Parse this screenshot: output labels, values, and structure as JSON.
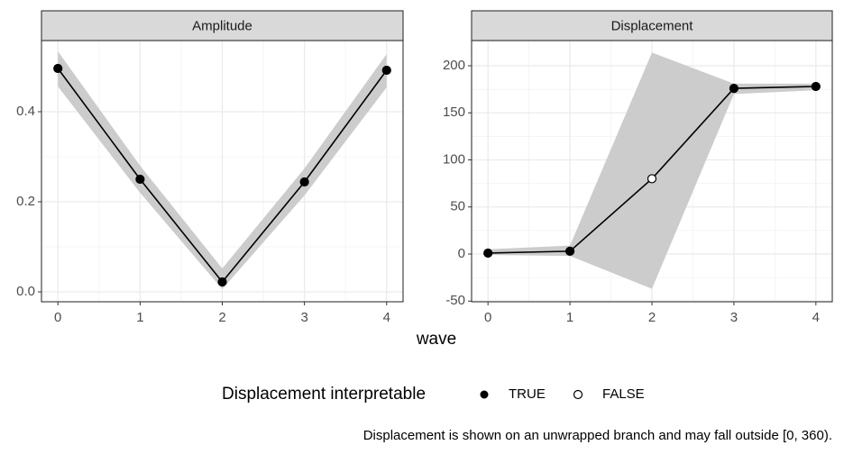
{
  "x_label": "wave",
  "legend": {
    "title": "Displacement interpretable",
    "entries": [
      "TRUE",
      "FALSE"
    ]
  },
  "caption": "Displacement is shown on an unwrapped branch and may fall outside [0, 360).",
  "chart_data": [
    {
      "type": "line",
      "title": "Amplitude",
      "color": "#000000",
      "band_color": "#cccccc",
      "grid": true,
      "x": [
        0,
        1,
        2,
        3,
        4
      ],
      "values": [
        0.496,
        0.25,
        0.022,
        0.244,
        0.492
      ],
      "lower": [
        0.456,
        0.22,
        0.006,
        0.214,
        0.454
      ],
      "upper": [
        0.534,
        0.28,
        0.052,
        0.274,
        0.528
      ],
      "interpretable": [
        true,
        true,
        true,
        true,
        true
      ],
      "xlim": [
        -0.2,
        4.2
      ],
      "xticks": [
        0,
        1,
        2,
        3,
        4
      ],
      "ylim": [
        -0.022,
        0.558
      ],
      "yticks": [
        {
          "value": 0,
          "label": "0.0"
        },
        0.2,
        0.4
      ]
    },
    {
      "type": "line",
      "title": "Displacement",
      "color": "#000000",
      "band_color": "#cccccc",
      "grid": true,
      "x": [
        0,
        1,
        2,
        3,
        4
      ],
      "values": [
        1,
        3,
        80,
        176,
        178
      ],
      "lower": [
        -1,
        -2,
        -37,
        170,
        174
      ],
      "upper": [
        5,
        9,
        214,
        181,
        181
      ],
      "interpretable": [
        true,
        true,
        false,
        true,
        true
      ],
      "xlim": [
        -0.2,
        4.2
      ],
      "xticks": [
        0,
        1,
        2,
        3,
        4
      ],
      "ylim": [
        -50.7,
        226.8
      ],
      "yticks": [
        -50,
        0,
        50,
        100,
        150,
        200
      ]
    }
  ]
}
